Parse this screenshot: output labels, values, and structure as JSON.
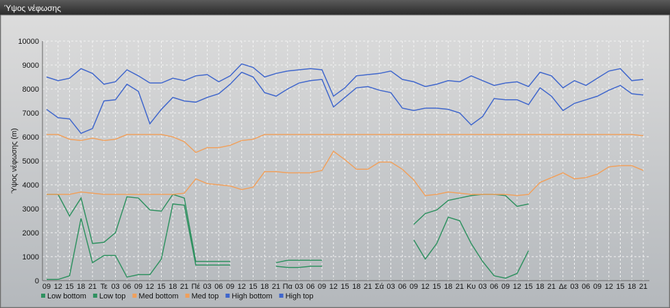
{
  "chart_data": {
    "type": "line",
    "title": "Ύψος νέφωσης",
    "y_label": "Ύψος νέφωσης (m)",
    "categories": [
      "09",
      "12",
      "15",
      "18",
      "21",
      "Τε",
      "03",
      "06",
      "09",
      "12",
      "15",
      "18",
      "21",
      "Πέ",
      "03",
      "06",
      "09",
      "12",
      "15",
      "18",
      "21",
      "Πα",
      "03",
      "06",
      "09",
      "12",
      "15",
      "18",
      "21",
      "Σά",
      "03",
      "06",
      "09",
      "12",
      "15",
      "18",
      "21",
      "Κυ",
      "03",
      "06",
      "09",
      "12",
      "15",
      "18",
      "21",
      "Δε",
      "03",
      "06",
      "09",
      "12",
      "15",
      "18",
      "21"
    ],
    "ylim": [
      0,
      10000
    ],
    "yticks": [
      0,
      1000,
      2000,
      3000,
      4000,
      5000,
      6000,
      7000,
      8000,
      9000,
      10000
    ],
    "grid": true,
    "legend": "bottom",
    "series": [
      {
        "name": "Low bottom",
        "color": "#2f9160",
        "values": [
          50,
          50,
          200,
          2600,
          750,
          1050,
          1050,
          150,
          250,
          250,
          900,
          3200,
          3150,
          650,
          650,
          650,
          650,
          null,
          null,
          null,
          600,
          550,
          550,
          600,
          600,
          null,
          null,
          null,
          null,
          null,
          null,
          null,
          1700,
          900,
          1550,
          2650,
          2500,
          1550,
          800,
          200,
          100,
          300,
          1250,
          null,
          null,
          null,
          null,
          null,
          null,
          null,
          null,
          null,
          null
        ]
      },
      {
        "name": "Low top",
        "color": "#2f9160",
        "values": [
          3600,
          3600,
          2700,
          3450,
          1550,
          1600,
          2000,
          3500,
          3450,
          2950,
          2900,
          3600,
          3450,
          800,
          800,
          800,
          800,
          null,
          null,
          null,
          750,
          850,
          850,
          850,
          850,
          null,
          null,
          null,
          null,
          null,
          null,
          null,
          2350,
          2800,
          2950,
          3350,
          3450,
          3550,
          3600,
          3600,
          3550,
          3100,
          3200,
          null,
          null,
          null,
          null,
          null,
          null,
          null,
          null,
          null,
          null
        ]
      },
      {
        "name": "Med bottom",
        "color": "#f0a05c",
        "values": [
          3600,
          3600,
          3600,
          3700,
          3650,
          3600,
          3600,
          3600,
          3600,
          3600,
          3600,
          3600,
          3650,
          4250,
          4050,
          4000,
          3950,
          3800,
          3900,
          4550,
          4550,
          4500,
          4500,
          4500,
          4600,
          5400,
          5050,
          4650,
          4650,
          4950,
          4950,
          4650,
          4200,
          3550,
          3600,
          3700,
          3650,
          3600,
          3600,
          3600,
          3600,
          3550,
          3600,
          4100,
          4300,
          4500,
          4250,
          4300,
          4450,
          4750,
          4800,
          4800,
          4600
        ]
      },
      {
        "name": "Med top",
        "color": "#f0a05c",
        "values": [
          6100,
          6100,
          5900,
          5850,
          5950,
          5850,
          5900,
          6100,
          6100,
          6100,
          6100,
          6000,
          5800,
          5350,
          5550,
          5550,
          5650,
          5850,
          5900,
          6100,
          6100,
          6100,
          6100,
          6100,
          6100,
          6100,
          6100,
          6100,
          6100,
          6100,
          6100,
          6100,
          6100,
          6100,
          6100,
          6100,
          6100,
          6100,
          6100,
          6100,
          6100,
          6100,
          6100,
          6100,
          6100,
          6100,
          6100,
          6100,
          6100,
          6100,
          6100,
          6100,
          6050
        ]
      },
      {
        "name": "High bottom",
        "color": "#3f66cc",
        "values": [
          7150,
          6800,
          6750,
          6150,
          6350,
          7500,
          7550,
          8200,
          7900,
          6550,
          7150,
          7650,
          7500,
          7450,
          7650,
          7800,
          8200,
          8700,
          8500,
          7850,
          7700,
          8000,
          8250,
          8350,
          8400,
          7250,
          7650,
          8050,
          8100,
          7950,
          7850,
          7200,
          7100,
          7200,
          7200,
          7150,
          7000,
          6500,
          6850,
          7600,
          7550,
          7550,
          7350,
          8050,
          7700,
          7100,
          7400,
          7550,
          7700,
          7950,
          8150,
          7800,
          7750
        ]
      },
      {
        "name": "High top",
        "color": "#3f66cc",
        "values": [
          8500,
          8350,
          8450,
          8850,
          8650,
          8200,
          8300,
          8800,
          8550,
          8250,
          8250,
          8450,
          8350,
          8550,
          8600,
          8300,
          8550,
          9050,
          8900,
          8500,
          8650,
          8750,
          8800,
          8850,
          8800,
          7700,
          8050,
          8550,
          8600,
          8650,
          8750,
          8400,
          8300,
          8100,
          8200,
          8350,
          8300,
          8550,
          8350,
          8150,
          8250,
          8300,
          8100,
          8700,
          8550,
          8050,
          8350,
          8150,
          8450,
          8750,
          8850,
          8350,
          8400
        ]
      }
    ]
  }
}
